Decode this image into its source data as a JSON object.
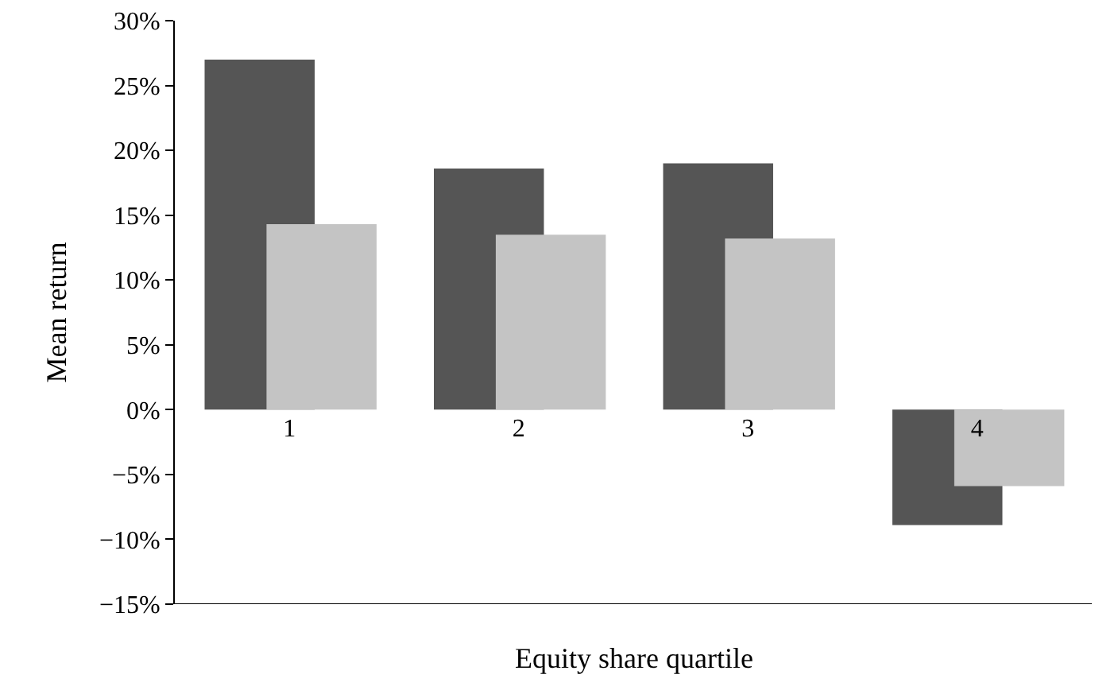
{
  "chart_data": {
    "type": "bar",
    "xlabel": "Equity share quartile",
    "ylabel": "Mean return",
    "categories": [
      "1",
      "2",
      "3",
      "4"
    ],
    "series": [
      {
        "color": "#555555",
        "values": [
          27.0,
          18.6,
          19.0,
          -8.9
        ]
      },
      {
        "color": "#c4c4c4",
        "values": [
          14.3,
          13.5,
          13.2,
          -5.9
        ]
      }
    ],
    "ylim": [
      -15,
      30
    ],
    "yticks": [
      {
        "value": -15,
        "label": "−15%"
      },
      {
        "value": -10,
        "label": "−10%"
      },
      {
        "value": -5,
        "label": "−5%"
      },
      {
        "value": 0,
        "label": "0%"
      },
      {
        "value": 5,
        "label": "5%"
      },
      {
        "value": 10,
        "label": "10%"
      },
      {
        "value": 15,
        "label": "15%"
      },
      {
        "value": 20,
        "label": "20%"
      },
      {
        "value": 25,
        "label": "25%"
      },
      {
        "value": 30,
        "label": "30%"
      }
    ]
  }
}
